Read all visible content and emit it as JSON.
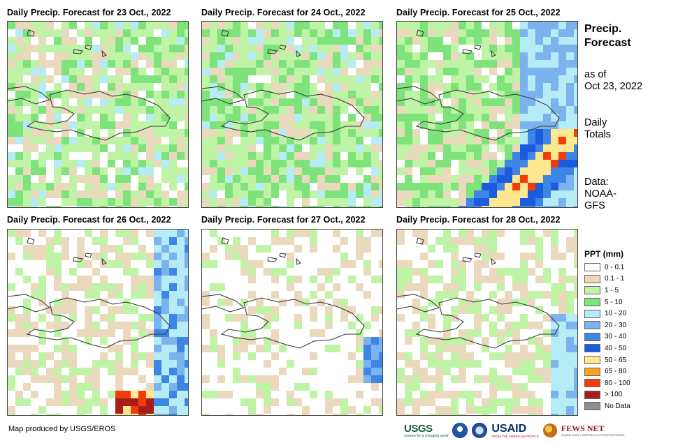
{
  "panels": [
    {
      "title": "Daily Precip. Forecast for 23 Oct., 2022"
    },
    {
      "title": "Daily Precip. Forecast for 24 Oct., 2022"
    },
    {
      "title": "Daily Precip. Forecast for 25 Oct., 2022"
    },
    {
      "title": "Daily Precip. Forecast for 26 Oct., 2022"
    },
    {
      "title": "Daily Precip. Forecast for 27 Oct., 2022"
    },
    {
      "title": "Daily Precip. Forecast for 28 Oct., 2022"
    }
  ],
  "side": {
    "title_line1": "Precip.",
    "title_line2": "Forecast",
    "asof_line1": "as of",
    "asof_line2": "Oct 23, 2022",
    "totals_line1": "Daily",
    "totals_line2": "Totals",
    "source_line1": "Data:",
    "source_line2": "NOAA-",
    "source_line3": "GFS"
  },
  "legend": {
    "title": "PPT (mm)",
    "items": [
      {
        "label": "0 - 0.1",
        "color": "#ffffff"
      },
      {
        "label": "0.1 - 1",
        "color": "#ead9bd"
      },
      {
        "label": "1 - 5",
        "color": "#bff3a5"
      },
      {
        "label": "5 - 10",
        "color": "#7ee37a"
      },
      {
        "label": "10 - 20",
        "color": "#b5ecf5"
      },
      {
        "label": "20 - 30",
        "color": "#7bb3ee"
      },
      {
        "label": "30 - 40",
        "color": "#3f85e6"
      },
      {
        "label": "40 - 50",
        "color": "#1a5be0"
      },
      {
        "label": "50 - 65",
        "color": "#fde88f"
      },
      {
        "label": "65 - 80",
        "color": "#f9a21c"
      },
      {
        "label": "80 - 100",
        "color": "#f23c0c"
      },
      {
        "label": "> 100",
        "color": "#a81c1c"
      },
      {
        "label": "No Data",
        "color": "#8f8f8f"
      }
    ]
  },
  "credit": "Map produced by USGS/EROS",
  "logos": {
    "usgs": "USGS",
    "usgs_tagline": "science for a changing world",
    "usaid": "USAID",
    "usaid_tagline": "FROM THE AMERICAN PEOPLE",
    "fews": "FEWS NET",
    "fews_tagline": "FAMINE EARLY WARNING SYSTEMS NETWORK"
  }
}
